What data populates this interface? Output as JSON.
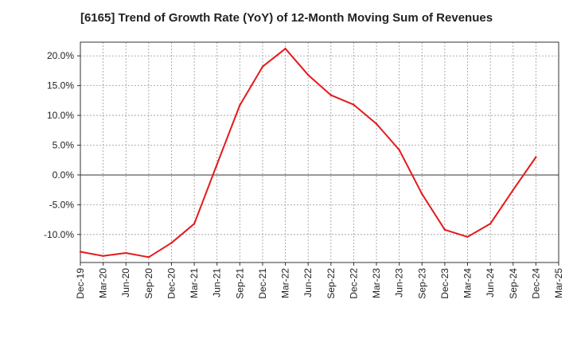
{
  "chart_data": {
    "type": "line",
    "title": "[6165]  Trend of Growth Rate (YoY) of 12-Month Moving Sum of Revenues",
    "xlabel": "",
    "ylabel": "",
    "x_ticks": [
      "Dec-19",
      "Mar-20",
      "Jun-20",
      "Sep-20",
      "Dec-20",
      "Mar-21",
      "Jun-21",
      "Sep-21",
      "Dec-21",
      "Mar-22",
      "Jun-22",
      "Sep-22",
      "Dec-22",
      "Mar-23",
      "Jun-23",
      "Sep-23",
      "Dec-23",
      "Mar-24",
      "Jun-24",
      "Sep-24",
      "Dec-24",
      "Mar-25"
    ],
    "y_ticks": [
      20.0,
      15.0,
      10.0,
      5.0,
      0.0,
      -5.0,
      -10.0
    ],
    "y_tick_labels": [
      "20.0%",
      "15.0%",
      "10.0%",
      "5.0%",
      "0.0%",
      "-5.0%",
      "-10.0%"
    ],
    "ylim": [
      -14.7,
      22.3
    ],
    "grid": true,
    "series": [
      {
        "color": "#e31a1c",
        "x": [
          "Dec-19",
          "Mar-20",
          "Jun-20",
          "Sep-20",
          "Dec-20",
          "Mar-21",
          "Jun-21",
          "Sep-21",
          "Dec-21",
          "Mar-22",
          "Jun-22",
          "Sep-22",
          "Dec-22",
          "Mar-23",
          "Jun-23",
          "Sep-23",
          "Dec-23",
          "Mar-24",
          "Jun-24",
          "Sep-24",
          "Dec-24"
        ],
        "values": [
          -12.9,
          -13.6,
          -13.1,
          -13.8,
          -11.4,
          -8.2,
          1.8,
          11.7,
          18.2,
          21.2,
          16.8,
          13.4,
          11.8,
          8.6,
          4.2,
          -3.2,
          -9.2,
          -10.4,
          -8.2,
          -2.5,
          3.0
        ]
      }
    ]
  }
}
